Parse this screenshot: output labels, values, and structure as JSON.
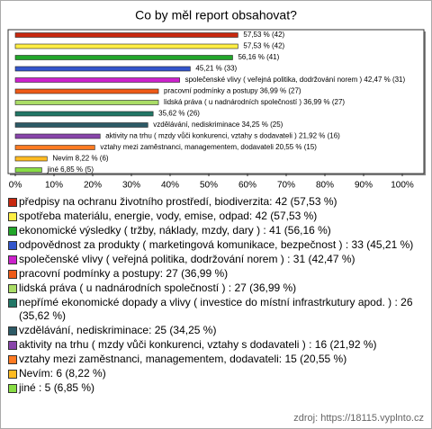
{
  "chart_data": {
    "type": "bar",
    "orientation": "horizontal",
    "title": "Co by měl report obsahovat?",
    "categories": [
      "předpisy na ochranu životního prostředí, biodiverzita: 42 (57,53 %)",
      "spotřeba materiálu, energie, vody, emise, odpad: 42 (57,53 %)",
      "ekonomické výsledky ( tržby, náklady, mzdy, dary ) : 41 (56,16 %)",
      "odpovědnost za produkty ( marketingová komunikace, bezpečnost ) : 33 (45,21 %)",
      "společenské vlivy ( veřejná politika, dodržování norem ) : 31 (42,47 %)",
      "pracovní podmínky a postupy: 27 (36,99 %)",
      "lidská práva ( u nadnárodních společností ) : 27 (36,99 %)",
      "nepřímé ekonomické dopady a vlivy ( investice do místní infrastrkutury apod. ) : 26 (35,62 %)",
      "vzdělávání, nediskriminace: 25 (34,25 %)",
      "aktivity na trhu ( mzdy vůči konkurenci, vztahy s dodavateli ) : 16 (21,92 %)",
      "vztahy mezi zaměstnanci, managementem, dodavateli: 15 (20,55 %)",
      "Nevím: 6 (8,22 %)",
      "jiné : 5 (6,85 %)"
    ],
    "values": [
      57.53,
      57.53,
      56.16,
      45.21,
      42.47,
      36.99,
      36.99,
      35.62,
      34.25,
      21.92,
      20.55,
      8.22,
      6.85
    ],
    "value_labels": [
      "57,53 % (42)",
      "57,53 % (42)",
      "56,16 % (41)",
      "45,21 % (33)",
      "společenské vlivy ( veřejná politika, dodržování norem )  42,47 % (31)",
      "pracovní podmínky a postupy 36,99 % (27)",
      "lidská práva  ( u nadnárodních společností )  36,99 % (27)",
      "35,62 % (26)",
      "vzdělávání, nediskriminace 34,25 % (25)",
      "aktivity na trhu ( mzdy vůči konkurenci, vztahy s dodavateli )  21,92 % (16)",
      "vztahy mezi zaměstnanci, managementem, dodavateli 20,55 % (15)",
      "Nevím 8,22 % (6)",
      "jiné  6,85 % (5)"
    ],
    "colors": [
      "#c8280f",
      "#ffee44",
      "#22a62a",
      "#3355cc",
      "#cc22cc",
      "#ee5a18",
      "#aadd66",
      "#227766",
      "#2d5a66",
      "#8844aa",
      "#ff7a22",
      "#ffbb22",
      "#88dd44"
    ],
    "xlim": [
      0,
      100
    ],
    "xticks": [
      {
        "value": 0,
        "label": "0%"
      },
      {
        "value": 10,
        "label": "10%"
      },
      {
        "value": 20,
        "label": "20%"
      },
      {
        "value": 30,
        "label": "30%"
      },
      {
        "value": 40,
        "label": "40%"
      },
      {
        "value": 50,
        "label": "50%"
      },
      {
        "value": 60,
        "label": "60%"
      },
      {
        "value": 70,
        "label": "70%"
      },
      {
        "value": 80,
        "label": "80%"
      },
      {
        "value": 90,
        "label": "90%"
      },
      {
        "value": 100,
        "label": "100%"
      }
    ],
    "source": "zdroj: https://18115.vyplnto.cz"
  }
}
